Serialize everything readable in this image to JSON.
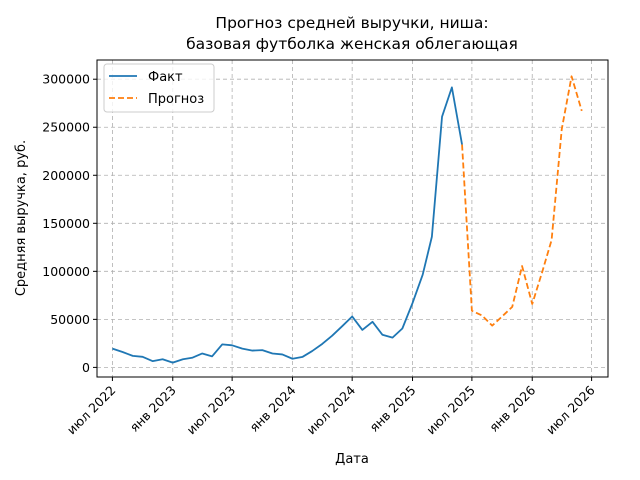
{
  "chart_data": {
    "type": "line",
    "title": [
      "Прогноз средней выручки, ниша:",
      "базовая футболка женская облегающая"
    ],
    "xlabel": "Дата",
    "ylabel": "Средняя выручка, руб.",
    "ylim": [
      -10000,
      320000
    ],
    "xlim": [
      "2022-05-15",
      "2026-08-20"
    ],
    "grid": true,
    "legend_position": "top-left",
    "x_ticks": [
      {
        "date": "2022-07-01",
        "label": "июл 2022"
      },
      {
        "date": "2023-01-01",
        "label": "янв 2023"
      },
      {
        "date": "2023-07-01",
        "label": "июл 2023"
      },
      {
        "date": "2024-01-01",
        "label": "янв 2024"
      },
      {
        "date": "2024-07-01",
        "label": "июл 2024"
      },
      {
        "date": "2025-01-01",
        "label": "янв 2025"
      },
      {
        "date": "2025-07-01",
        "label": "июл 2025"
      },
      {
        "date": "2026-01-01",
        "label": "янв 2026"
      },
      {
        "date": "2026-07-01",
        "label": "июл 2026"
      }
    ],
    "y_ticks": [
      {
        "value": 0,
        "label": "0"
      },
      {
        "value": 50000,
        "label": "50000"
      },
      {
        "value": 100000,
        "label": "100000"
      },
      {
        "value": 150000,
        "label": "150000"
      },
      {
        "value": 200000,
        "label": "200000"
      },
      {
        "value": 250000,
        "label": "250000"
      },
      {
        "value": 300000,
        "label": "300000"
      }
    ],
    "series": [
      {
        "name": "Факт",
        "color": "#1f77b4",
        "style": "solid",
        "points": [
          [
            "2022-07-01",
            19500
          ],
          [
            "2022-08-01",
            16000
          ],
          [
            "2022-09-01",
            12000
          ],
          [
            "2022-10-01",
            11000
          ],
          [
            "2022-11-01",
            6500
          ],
          [
            "2022-12-01",
            8500
          ],
          [
            "2023-01-01",
            5000
          ],
          [
            "2023-02-01",
            8500
          ],
          [
            "2023-03-01",
            10000
          ],
          [
            "2023-04-01",
            14500
          ],
          [
            "2023-05-01",
            11500
          ],
          [
            "2023-06-01",
            24000
          ],
          [
            "2023-07-01",
            23000
          ],
          [
            "2023-08-01",
            19500
          ],
          [
            "2023-09-01",
            17500
          ],
          [
            "2023-10-01",
            18000
          ],
          [
            "2023-11-01",
            14500
          ],
          [
            "2023-12-01",
            13500
          ],
          [
            "2024-01-01",
            9000
          ],
          [
            "2024-02-01",
            11000
          ],
          [
            "2024-03-01",
            17000
          ],
          [
            "2024-04-01",
            24500
          ],
          [
            "2024-05-01",
            33000
          ],
          [
            "2024-06-01",
            43000
          ],
          [
            "2024-07-01",
            53000
          ],
          [
            "2024-08-01",
            39000
          ],
          [
            "2024-09-01",
            47500
          ],
          [
            "2024-10-01",
            34000
          ],
          [
            "2024-11-01",
            31000
          ],
          [
            "2024-12-01",
            40500
          ],
          [
            "2025-01-01",
            67000
          ],
          [
            "2025-02-01",
            96500
          ],
          [
            "2025-03-01",
            136000
          ],
          [
            "2025-04-01",
            261000
          ],
          [
            "2025-05-01",
            291500
          ],
          [
            "2025-06-01",
            232000
          ]
        ]
      },
      {
        "name": "Прогноз",
        "color": "#ff7f0e",
        "style": "dashed",
        "points": [
          [
            "2025-06-01",
            232000
          ],
          [
            "2025-07-01",
            59000
          ],
          [
            "2025-08-01",
            54000
          ],
          [
            "2025-09-01",
            43500
          ],
          [
            "2025-10-01",
            53000
          ],
          [
            "2025-11-01",
            63000
          ],
          [
            "2025-12-01",
            105500
          ],
          [
            "2026-01-01",
            66000
          ],
          [
            "2026-02-01",
            100000
          ],
          [
            "2026-03-01",
            132500
          ],
          [
            "2026-04-01",
            248000
          ],
          [
            "2026-05-01",
            303000
          ],
          [
            "2026-06-01",
            267000
          ]
        ]
      }
    ]
  }
}
